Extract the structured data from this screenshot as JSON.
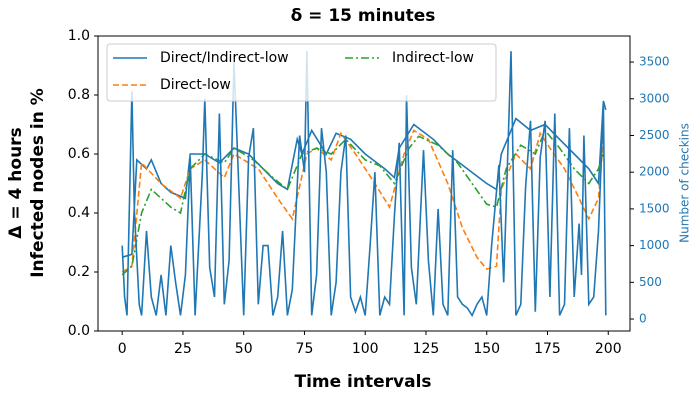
{
  "chart_data": {
    "type": "line",
    "title": "δ = 15 minutes",
    "x_label": "Time intervals",
    "y_label": [
      "Δ = 4 hours",
      "Infected nodes in %"
    ],
    "y2_label": "Number of checkins",
    "xlim": [
      -9.95,
      208.95
    ],
    "xticks": [
      0,
      25,
      50,
      75,
      100,
      125,
      150,
      175,
      200
    ],
    "ylim": [
      0,
      1
    ],
    "yticks": [
      {
        "value": 0,
        "label": "0.0"
      },
      {
        "value": 0.2,
        "label": "0.2"
      },
      {
        "value": 0.4,
        "label": "0.4"
      },
      {
        "value": 0.6,
        "label": "0.6"
      },
      {
        "value": 0.8,
        "label": "0.8"
      },
      {
        "value": 1,
        "label": "1.0"
      }
    ],
    "y2lim": [
      -163,
      3855
    ],
    "y2ticks": [
      0,
      500,
      1000,
      1500,
      2000,
      2500,
      3000,
      3500
    ],
    "legend": "upper left",
    "legend_columns": 2,
    "series": [
      {
        "name": "Direct/Indirect-low",
        "color": "#1f77b4",
        "dash": "solid",
        "x": [
          0,
          4,
          6,
          10,
          12,
          16,
          20,
          26,
          28,
          34,
          40,
          46,
          52,
          58,
          64,
          68,
          72,
          74,
          78,
          84,
          88,
          94,
          100,
          108,
          112,
          114,
          120,
          128,
          134,
          142,
          150,
          154,
          156,
          162,
          168,
          174,
          180,
          186,
          192,
          196,
          198,
          199
        ],
        "values": [
          0.25,
          0.26,
          0.58,
          0.55,
          0.58,
          0.5,
          0.47,
          0.45,
          0.6,
          0.6,
          0.57,
          0.62,
          0.6,
          0.55,
          0.5,
          0.48,
          0.65,
          0.6,
          0.68,
          0.6,
          0.67,
          0.65,
          0.6,
          0.55,
          0.52,
          0.62,
          0.7,
          0.65,
          0.6,
          0.55,
          0.5,
          0.48,
          0.6,
          0.72,
          0.68,
          0.7,
          0.65,
          0.6,
          0.55,
          0.5,
          0.78,
          0.75
        ]
      },
      {
        "name": "Direct-low",
        "color": "#ff7f0e",
        "dash": "dashed",
        "x": [
          0,
          4,
          8,
          16,
          24,
          28,
          34,
          42,
          46,
          56,
          64,
          70,
          76,
          80,
          86,
          90,
          96,
          104,
          110,
          116,
          120,
          126,
          134,
          140,
          146,
          150,
          154,
          156,
          162,
          168,
          172,
          176,
          182,
          188,
          192,
          196,
          198
        ],
        "values": [
          0.2,
          0.22,
          0.57,
          0.5,
          0.45,
          0.55,
          0.58,
          0.52,
          0.6,
          0.55,
          0.45,
          0.38,
          0.6,
          0.62,
          0.58,
          0.67,
          0.6,
          0.5,
          0.42,
          0.6,
          0.68,
          0.65,
          0.5,
          0.35,
          0.25,
          0.21,
          0.22,
          0.48,
          0.6,
          0.55,
          0.67,
          0.62,
          0.55,
          0.45,
          0.38,
          0.45,
          0.65
        ]
      },
      {
        "name": "Indirect-low",
        "color": "#2ca02c",
        "dash": "dashdot",
        "x": [
          0,
          4,
          8,
          12,
          20,
          24,
          28,
          34,
          42,
          46,
          54,
          62,
          68,
          74,
          80,
          86,
          92,
          100,
          106,
          112,
          118,
          122,
          130,
          138,
          144,
          150,
          154,
          158,
          164,
          170,
          174,
          180,
          186,
          192,
          196,
          198
        ],
        "values": [
          0.19,
          0.22,
          0.4,
          0.48,
          0.42,
          0.4,
          0.55,
          0.6,
          0.57,
          0.62,
          0.58,
          0.52,
          0.48,
          0.6,
          0.62,
          0.6,
          0.65,
          0.58,
          0.56,
          0.5,
          0.62,
          0.66,
          0.63,
          0.57,
          0.5,
          0.43,
          0.42,
          0.55,
          0.63,
          0.6,
          0.68,
          0.62,
          0.55,
          0.5,
          0.55,
          0.6
        ]
      },
      {
        "color": "#1f77b4",
        "dash": "solid",
        "axis": "y2",
        "x": [
          0,
          1,
          2,
          4,
          5,
          7,
          8,
          10,
          12,
          14,
          16,
          18,
          20,
          22,
          24,
          26,
          28,
          30,
          33,
          34,
          36,
          38,
          40,
          42,
          44,
          46,
          48,
          50,
          52,
          54,
          56,
          58,
          60,
          62,
          64,
          66,
          68,
          70,
          73,
          75,
          76,
          78,
          80,
          82,
          84,
          86,
          88,
          90,
          92,
          94,
          96,
          98,
          100,
          102,
          104,
          106,
          108,
          110,
          112,
          114,
          116,
          117,
          119,
          121,
          124,
          126,
          128,
          130,
          132,
          134,
          136,
          138,
          140,
          142,
          144,
          146,
          148,
          150,
          152,
          155,
          157,
          159,
          160,
          162,
          164,
          166,
          168,
          170,
          172,
          174,
          176,
          178,
          180,
          182,
          184,
          186,
          188,
          189,
          190,
          192,
          194,
          196,
          198,
          199
        ],
        "values": [
          1000,
          300,
          50,
          3100,
          1500,
          200,
          50,
          1200,
          300,
          50,
          600,
          50,
          1000,
          500,
          50,
          600,
          2200,
          50,
          2000,
          3000,
          700,
          300,
          2800,
          200,
          800,
          3500,
          1800,
          50,
          2200,
          2600,
          200,
          1000,
          1000,
          50,
          300,
          1200,
          50,
          400,
          2500,
          2000,
          3650,
          50,
          600,
          2600,
          2000,
          50,
          500,
          2000,
          2500,
          300,
          100,
          300,
          50,
          1000,
          2000,
          50,
          300,
          200,
          1400,
          2400,
          50,
          3050,
          700,
          200,
          2300,
          800,
          50,
          1500,
          200,
          50,
          2300,
          300,
          200,
          150,
          50,
          200,
          300,
          50,
          1000,
          2100,
          500,
          2600,
          3650,
          50,
          200,
          1800,
          2700,
          100,
          2200,
          2700,
          300,
          2800,
          50,
          200,
          2600,
          300,
          1300,
          600,
          2500,
          200,
          300,
          1200,
          2900,
          50
        ]
      }
    ]
  }
}
